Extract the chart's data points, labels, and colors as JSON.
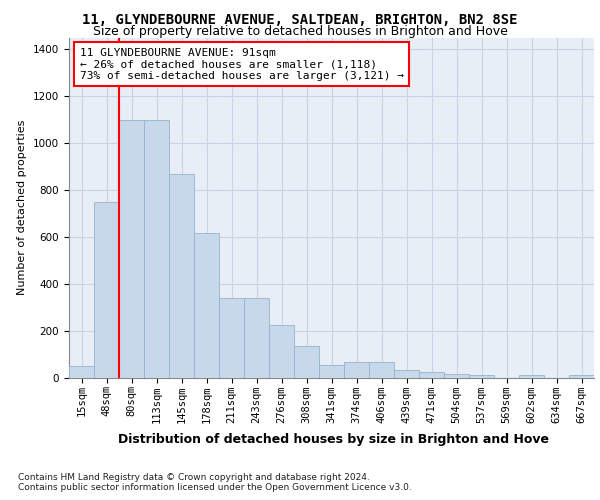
{
  "title1": "11, GLYNDEBOURNE AVENUE, SALTDEAN, BRIGHTON, BN2 8SE",
  "title2": "Size of property relative to detached houses in Brighton and Hove",
  "xlabel": "Distribution of detached houses by size in Brighton and Hove",
  "ylabel": "Number of detached properties",
  "footnote": "Contains HM Land Registry data © Crown copyright and database right 2024.\nContains public sector information licensed under the Open Government Licence v3.0.",
  "bin_labels": [
    "15sqm",
    "48sqm",
    "80sqm",
    "113sqm",
    "145sqm",
    "178sqm",
    "211sqm",
    "243sqm",
    "276sqm",
    "308sqm",
    "341sqm",
    "374sqm",
    "406sqm",
    "439sqm",
    "471sqm",
    "504sqm",
    "537sqm",
    "569sqm",
    "602sqm",
    "634sqm",
    "667sqm"
  ],
  "bar_heights": [
    50,
    750,
    1100,
    1100,
    870,
    615,
    340,
    340,
    225,
    135,
    55,
    65,
    65,
    30,
    25,
    15,
    10,
    0,
    10,
    0,
    10
  ],
  "bar_color": "#c8d8eb",
  "bar_edge_color": "#94b4cf",
  "grid_color": "#c8d4e4",
  "background_color": "#e8eef6",
  "vline_color": "red",
  "vline_pos": 1.5,
  "annotation_text": "11 GLYNDEBOURNE AVENUE: 91sqm\n← 26% of detached houses are smaller (1,118)\n73% of semi-detached houses are larger (3,121) →",
  "annotation_box_color": "white",
  "annotation_box_edge": "red",
  "ylim_max": 1450,
  "yticks": [
    0,
    200,
    400,
    600,
    800,
    1000,
    1200,
    1400
  ],
  "title1_fontsize": 10,
  "title2_fontsize": 9,
  "xlabel_fontsize": 9,
  "ylabel_fontsize": 8,
  "tick_fontsize": 7.5,
  "annotation_fontsize": 8,
  "footnote_fontsize": 6.5
}
